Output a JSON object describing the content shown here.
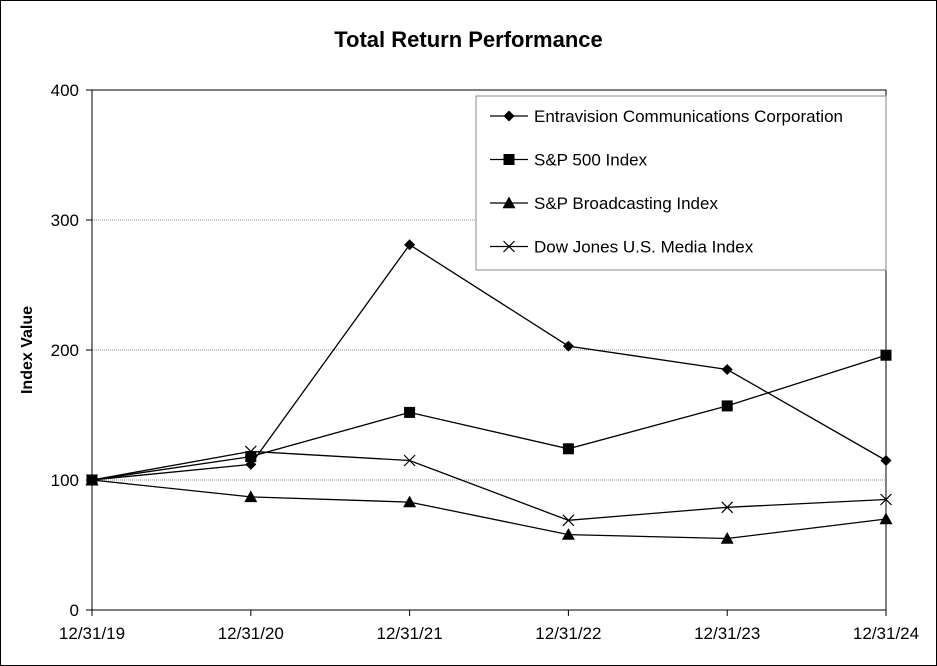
{
  "chart_data": {
    "type": "line",
    "title": "Total Return Performance",
    "xlabel": "",
    "ylabel": "Index Value",
    "categories": [
      "12/31/19",
      "12/31/20",
      "12/31/21",
      "12/31/22",
      "12/31/23",
      "12/31/24"
    ],
    "ylim": [
      0,
      400
    ],
    "yticks": [
      0,
      100,
      200,
      300,
      400
    ],
    "grid": true,
    "legend_position": "top-right",
    "series": [
      {
        "name": "Entravision Communications Corporation",
        "marker": "diamond",
        "values": [
          100,
          112,
          281,
          203,
          185,
          115
        ]
      },
      {
        "name": "S&P 500 Index",
        "marker": "square",
        "values": [
          100,
          118,
          152,
          124,
          157,
          196
        ]
      },
      {
        "name": "S&P Broadcasting Index",
        "marker": "triangle",
        "values": [
          100,
          87,
          83,
          58,
          55,
          70
        ]
      },
      {
        "name": "Dow Jones U.S. Media Index",
        "marker": "x",
        "values": [
          100,
          122,
          115,
          69,
          79,
          85
        ]
      }
    ]
  }
}
